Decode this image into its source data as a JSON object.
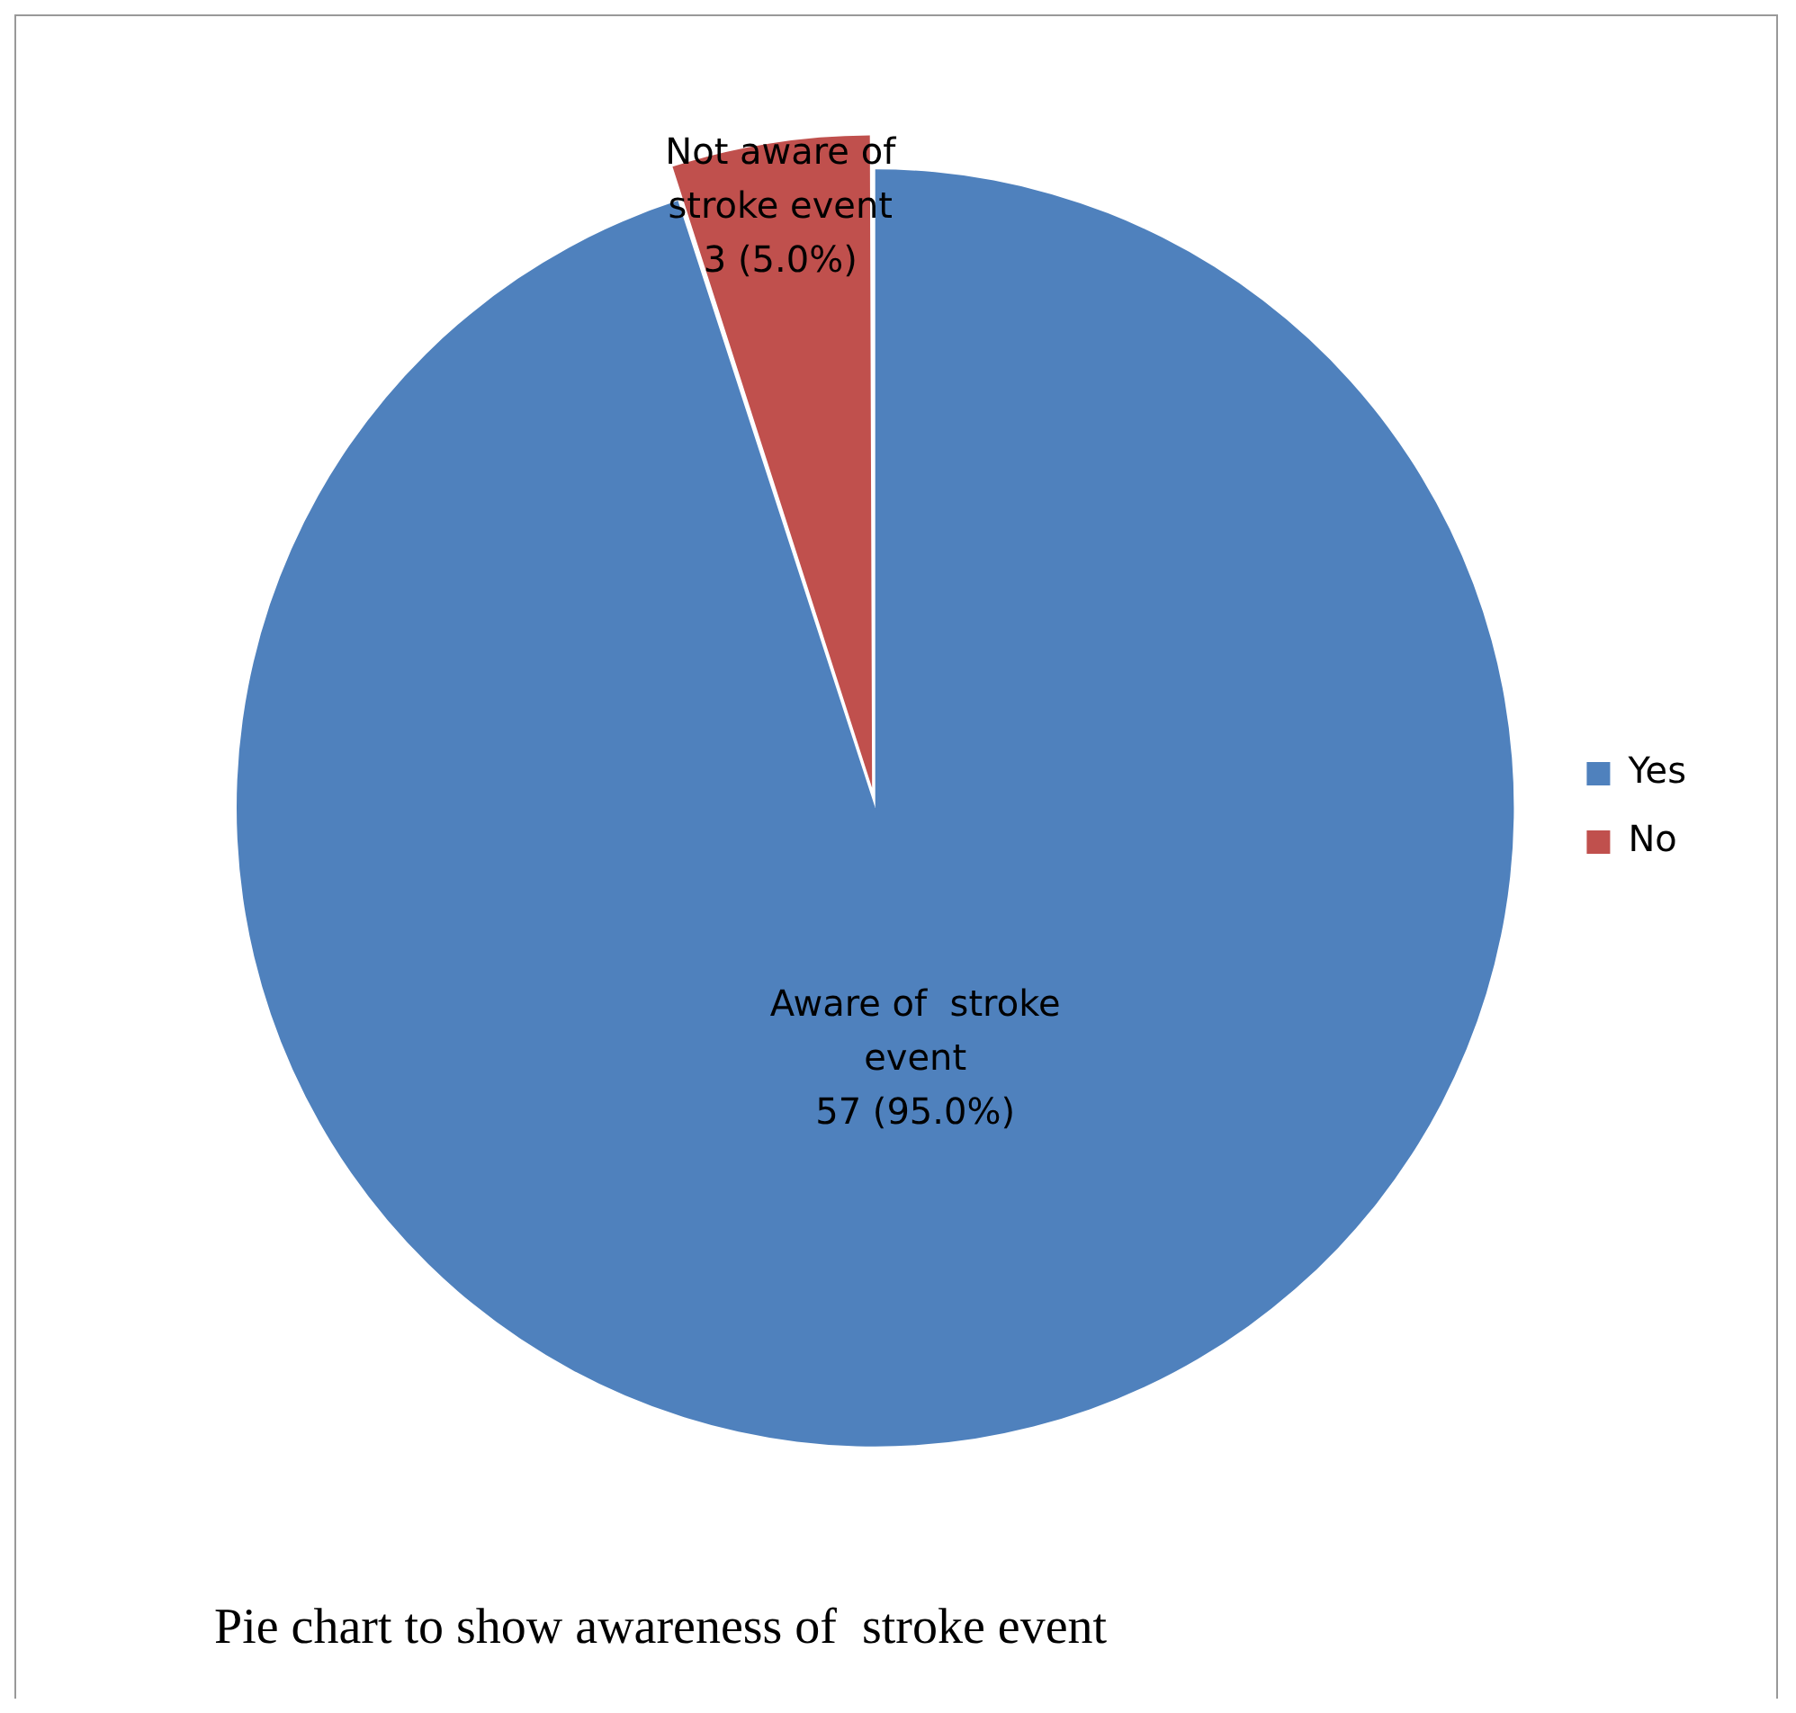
{
  "chart_data": {
    "type": "pie",
    "categories": [
      "Yes",
      "No"
    ],
    "values": [
      57,
      3
    ],
    "colors": [
      "#4f81bd",
      "#c0504d"
    ],
    "value_labels": [
      "Aware of  stroke\nevent\n57 (95.0%)",
      "Not aware of\nstroke event\n3 (5.0%)"
    ],
    "legend": "right",
    "annotations": [
      "Pie chart to show awareness of  stroke event"
    ]
  }
}
